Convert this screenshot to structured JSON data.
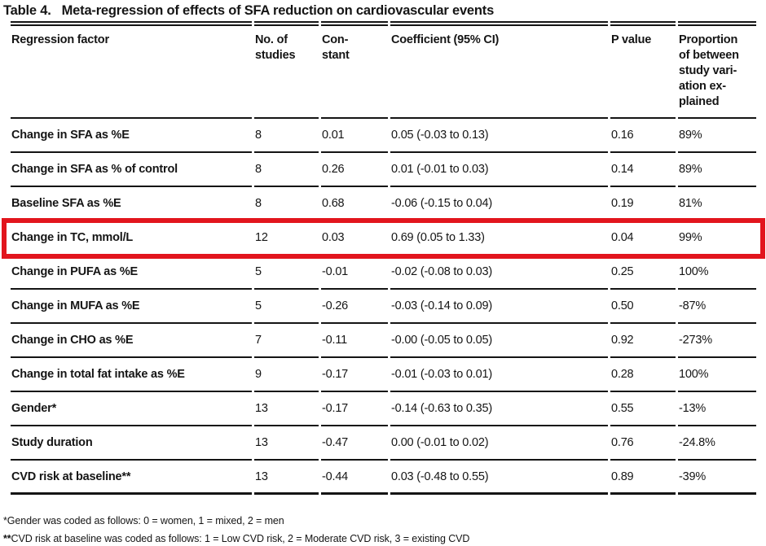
{
  "title": {
    "label": "Table 4.",
    "caption": "Meta-regression of effects of SFA reduction on cardiovascular events"
  },
  "table": {
    "columns": [
      "Regression factor",
      "No. of\nstudies",
      "Con-\nstant",
      "Coefficient (95% CI)",
      "P value",
      "Proportion\nof between\nstudy vari-\nation ex-\nplained"
    ],
    "rows": [
      [
        "Change in SFA as %E",
        "8",
        "0.01",
        "0.05 (-0.03 to 0.13)",
        "0.16",
        "89%"
      ],
      [
        "Change in SFA as % of control",
        "8",
        "0.26",
        "0.01 (-0.01 to 0.03)",
        "0.14",
        "89%"
      ],
      [
        "Baseline SFA as %E",
        "8",
        "0.68",
        "-0.06 (-0.15 to 0.04)",
        "0.19",
        "81%"
      ],
      [
        "Change in TC, mmol/L",
        "12",
        "0.03",
        "0.69 (0.05 to 1.33)",
        "0.04",
        "99%"
      ],
      [
        "Change in PUFA as %E",
        "5",
        "-0.01",
        "-0.02 (-0.08 to 0.03)",
        "0.25",
        "100%"
      ],
      [
        "Change in MUFA as %E",
        "5",
        "-0.26",
        "-0.03 (-0.14 to 0.09)",
        "0.50",
        "-87%"
      ],
      [
        "Change in CHO as %E",
        "7",
        "-0.11",
        "-0.00 (-0.05 to 0.05)",
        "0.92",
        "-273%"
      ],
      [
        "Change in total fat intake as %E",
        "9",
        "-0.17",
        "-0.01 (-0.03 to 0.01)",
        "0.28",
        "100%"
      ],
      [
        "Gender*",
        "13",
        "-0.17",
        "-0.14 (-0.63 to 0.35)",
        "0.55",
        "-13%"
      ],
      [
        "Study duration",
        "13",
        "-0.47",
        "0.00 (-0.01 to 0.02)",
        "0.76",
        "-24.8%"
      ],
      [
        "CVD risk at baseline**",
        "13",
        "-0.44",
        "0.03 (-0.48 to 0.55)",
        "0.89",
        "-39%"
      ]
    ]
  },
  "highlight": {
    "row_index": 3,
    "row_label": "Change in TC, mmol/L",
    "color": "#e2151d"
  },
  "footnotes": [
    {
      "marker": "*",
      "text": "Gender was coded as follows: 0 = women, 1 = mixed, 2 = men"
    },
    {
      "marker": "**",
      "text": "CVD risk at baseline was coded as follows: 1 = Low CVD risk, 2 = Moderate CVD risk, 3 = existing CVD"
    }
  ]
}
